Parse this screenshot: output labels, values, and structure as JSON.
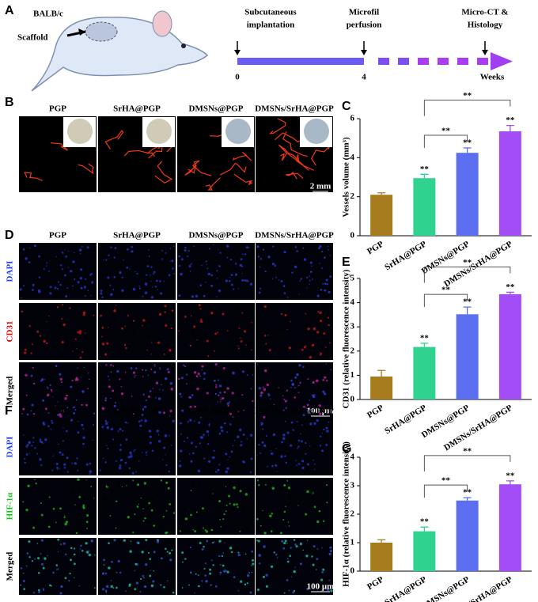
{
  "panel_labels": [
    "A",
    "B",
    "C",
    "D",
    "E",
    "F",
    "G"
  ],
  "schematic": {
    "strain": "BALB/c",
    "scaffold": "Scaffold",
    "events": [
      [
        "Subcutaneous",
        "implantation"
      ],
      [
        "Microfil",
        "perfusion"
      ],
      [
        "Micro-CT &",
        "Histology"
      ]
    ],
    "timeline": {
      "xlim": [
        0,
        8
      ],
      "ticks": [
        0,
        4
      ],
      "axis_label": "Weeks"
    }
  },
  "micro_ct": {
    "columns": [
      "PGP",
      "SrHA@PGP",
      "DMSNs@PGP",
      "DMSNs/SrHA@PGP"
    ],
    "scale_bar": "2 mm"
  },
  "cd31_staining": {
    "columns": [
      "PGP",
      "SrHA@PGP",
      "DMSNs@PGP",
      "DMSNs/SrHA@PGP"
    ],
    "rows": [
      "DAPI",
      "CD31",
      "Merged"
    ],
    "scale_bar": "100 μm"
  },
  "hif_staining": {
    "columns": [
      "PGP",
      "SrHA@PGP",
      "DMSNs@PGP",
      "DMSNs/SrHA@PGP"
    ],
    "rows": [
      "DAPI",
      "HIF-1α",
      "Merged"
    ],
    "scale_bar": "100 μm"
  },
  "chart_data": [
    {
      "type": "bar",
      "ylabel": "Vessels volume (mm³)",
      "categories": [
        "PGP",
        "SrHA@PGP",
        "DMSNs@PGP",
        "DMSNs/SrHA@PGP"
      ],
      "values": [
        2.1,
        2.95,
        4.25,
        5.35
      ],
      "errors": [
        0.1,
        0.2,
        0.25,
        0.3
      ],
      "colors": [
        "#a67c1f",
        "#2fd28f",
        "#5b6ff0",
        "#a24df5"
      ],
      "ylim": [
        0,
        6
      ],
      "yticks": [
        0,
        2,
        4,
        6
      ],
      "bar_annotations": [
        null,
        "**",
        "**",
        "**"
      ],
      "comparisons": [
        {
          "pair": [
            "SrHA@PGP",
            "DMSNs@PGP"
          ],
          "label": "**"
        },
        {
          "pair": [
            "SrHA@PGP",
            "DMSNs/SrHA@PGP"
          ],
          "label": "**"
        }
      ]
    },
    {
      "type": "bar",
      "ylabel": "CD31 (relative fluorescence intensity)",
      "categories": [
        "PGP",
        "SrHA@PGP",
        "DMSNs@PGP",
        "DMSNs/SrHA@PGP"
      ],
      "values": [
        0.95,
        2.17,
        3.52,
        4.35
      ],
      "errors": [
        0.25,
        0.15,
        0.3,
        0.08
      ],
      "colors": [
        "#a67c1f",
        "#2fd28f",
        "#5b6ff0",
        "#a24df5"
      ],
      "ylim": [
        0,
        5
      ],
      "yticks": [
        0,
        1,
        2,
        3,
        4,
        5
      ],
      "bar_annotations": [
        null,
        "**",
        "**",
        "**"
      ],
      "comparisons": [
        {
          "pair": [
            "SrHA@PGP",
            "DMSNs@PGP"
          ],
          "label": "**"
        },
        {
          "pair": [
            "SrHA@PGP",
            "DMSNs/SrHA@PGP"
          ],
          "label": "**"
        }
      ]
    },
    {
      "type": "bar",
      "ylabel": "HIF-1α (relative fluorescence intensity)",
      "categories": [
        "PGP",
        "SrHA@PGP",
        "DMSNs@PGP",
        "DMSNs/SrHA@PGP"
      ],
      "values": [
        1.0,
        1.4,
        2.48,
        3.05
      ],
      "errors": [
        0.1,
        0.15,
        0.1,
        0.12
      ],
      "colors": [
        "#a67c1f",
        "#2fd28f",
        "#5b6ff0",
        "#a24df5"
      ],
      "ylim": [
        0,
        4
      ],
      "yticks": [
        0,
        1,
        2,
        3,
        4
      ],
      "bar_annotations": [
        null,
        "**",
        "**",
        "**"
      ],
      "comparisons": [
        {
          "pair": [
            "SrHA@PGP",
            "DMSNs@PGP"
          ],
          "label": "**"
        },
        {
          "pair": [
            "SrHA@PGP",
            "DMSNs/SrHA@PGP"
          ],
          "label": "**"
        }
      ]
    }
  ]
}
